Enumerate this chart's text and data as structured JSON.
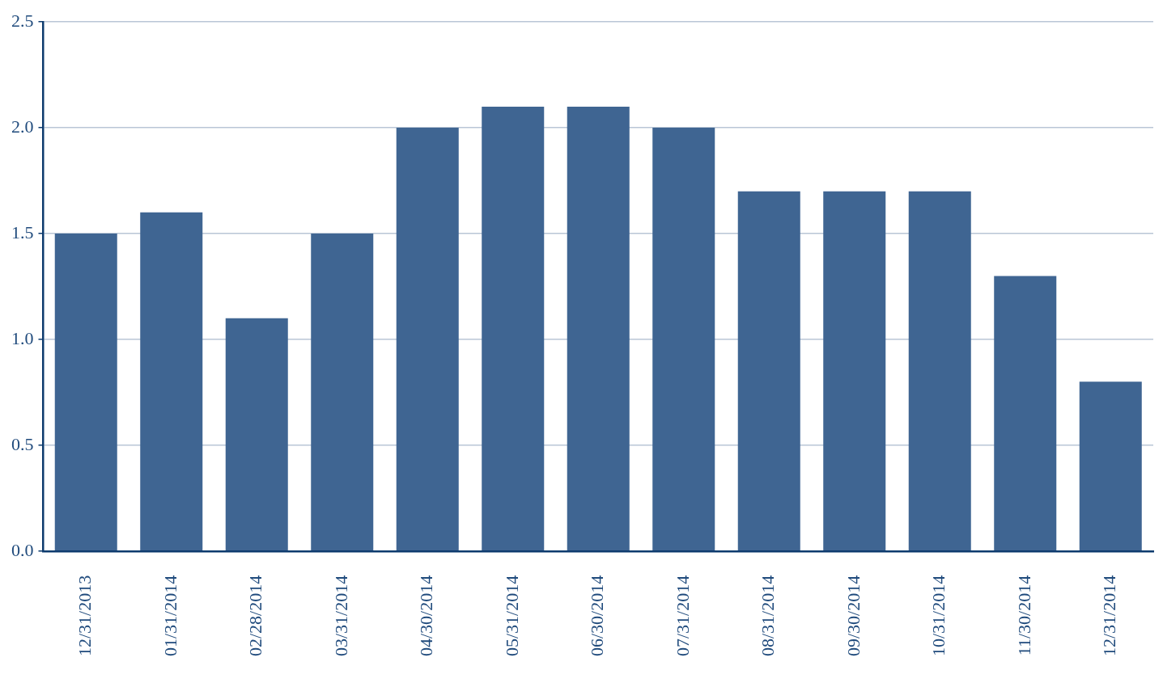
{
  "chart_data": {
    "type": "bar",
    "categories": [
      "12/31/2013",
      "01/31/2014",
      "02/28/2014",
      "03/31/2014",
      "04/30/2014",
      "05/31/2014",
      "06/30/2014",
      "07/31/2014",
      "08/31/2014",
      "09/30/2014",
      "10/31/2014",
      "11/30/2014",
      "12/31/2014"
    ],
    "values": [
      1.5,
      1.6,
      1.1,
      1.5,
      2.0,
      2.1,
      2.1,
      2.0,
      1.7,
      1.7,
      1.7,
      1.3,
      0.8
    ],
    "color": "#3f6592",
    "ylim": [
      0,
      2.5
    ],
    "yticks": [
      {
        "value": 0,
        "label": "0.0"
      },
      {
        "value": 0.5,
        "label": "0.5"
      },
      {
        "value": 1,
        "label": "1.0"
      },
      {
        "value": 1.5,
        "label": "1.5"
      },
      {
        "value": 2,
        "label": "2.0"
      },
      {
        "value": 2.5,
        "label": "2.5"
      }
    ],
    "grid": "y",
    "legend": false
  }
}
